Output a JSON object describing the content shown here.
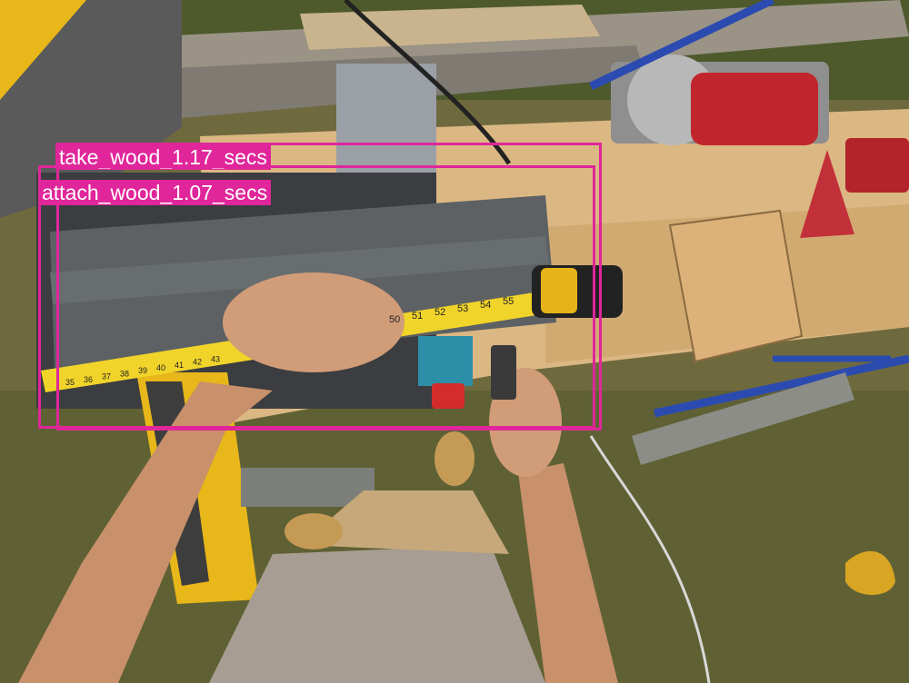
{
  "detections": [
    {
      "label": "take_wood_1.17_secs",
      "color": "#e0269a"
    },
    {
      "label": "attach_wood_1.07_secs",
      "color": "#e0269a"
    }
  ],
  "tape_numbers": [
    "50",
    "51",
    "52",
    "53",
    "54",
    "55",
    "35",
    "36",
    "37",
    "38",
    "39",
    "40",
    "41",
    "42",
    "43"
  ]
}
